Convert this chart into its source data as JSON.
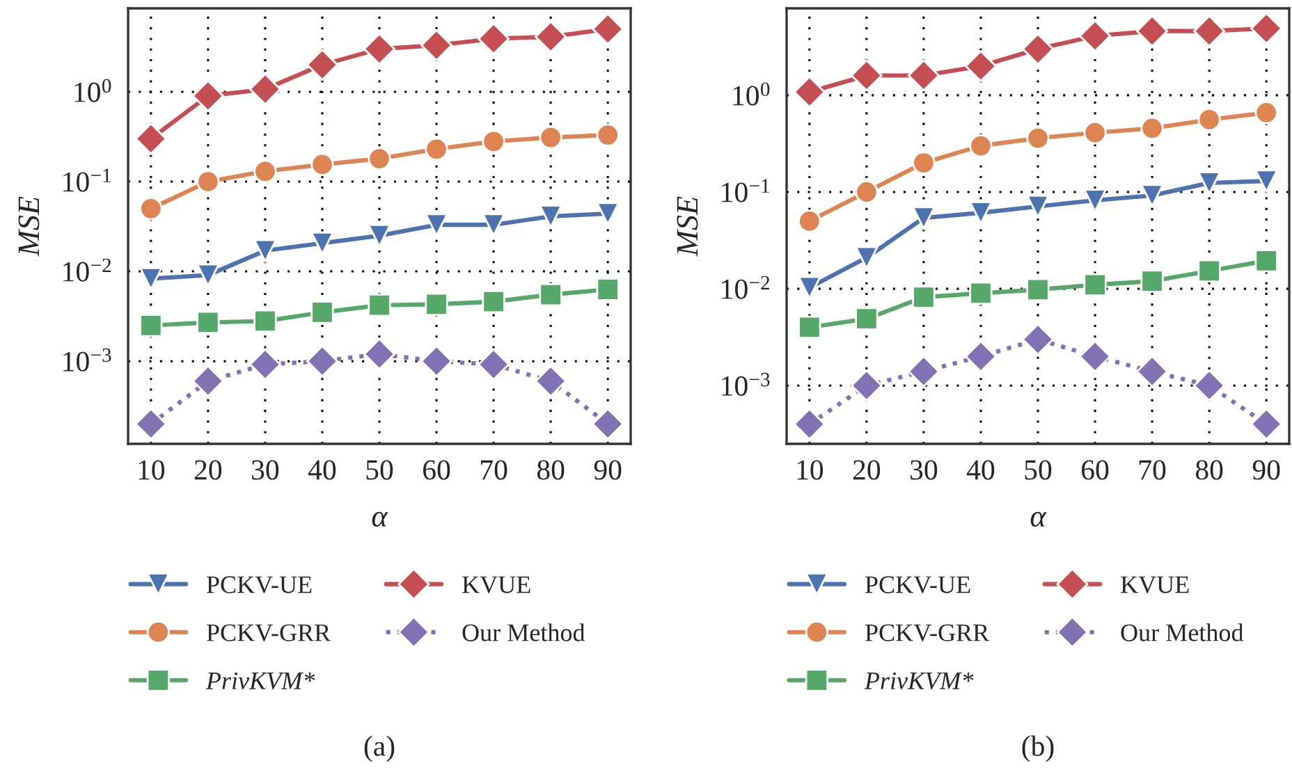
{
  "chart_data": [
    {
      "type": "line",
      "xlabel": "α",
      "ylabel": "MSE",
      "x": [
        10,
        20,
        30,
        40,
        50,
        60,
        70,
        80,
        90
      ],
      "xlim": [
        6,
        94
      ],
      "xticks": [
        10,
        20,
        30,
        40,
        50,
        60,
        70,
        80,
        90
      ],
      "log": "y",
      "ylim": [
        0.00012,
        8.5
      ],
      "yticks": [
        {
          "value": 0.001,
          "label": "10$^{−3}$"
        },
        {
          "value": 0.01,
          "label": "10$^{−2}$"
        },
        {
          "value": 0.1,
          "label": "10$^{−1}$"
        },
        {
          "value": 1,
          "label": "10$^{0}$"
        }
      ],
      "grid": true,
      "legend": "bottom",
      "annotations": [
        "(a)"
      ],
      "series": [
        {
          "name": "PCKV-UE",
          "color": "#4c72b0",
          "marker": "triangle",
          "line_style": "solid",
          "values": [
            0.0083,
            0.0091,
            0.017,
            0.0206,
            0.025,
            0.033,
            0.033,
            0.041,
            0.044
          ]
        },
        {
          "name": "PCKV-GRR",
          "color": "#dd8452",
          "marker": "circle",
          "line_style": "solid",
          "values": [
            0.05,
            0.1,
            0.13,
            0.155,
            0.18,
            0.23,
            0.28,
            0.31,
            0.33
          ]
        },
        {
          "name": "PrivKVM*",
          "color": "#55a868",
          "marker": "square",
          "line_style": "solid",
          "values": [
            0.0025,
            0.0027,
            0.0028,
            0.0035,
            0.0042,
            0.0043,
            0.0046,
            0.0055,
            0.0063
          ]
        },
        {
          "name": "KVUE",
          "color": "#c44e52",
          "marker": "diamond",
          "line_style": "solid",
          "values": [
            0.3,
            0.9,
            1.07,
            2.0,
            3.0,
            3.3,
            3.9,
            4.1,
            5.0
          ]
        },
        {
          "name": "Our Method",
          "color": "#8172b3",
          "marker": "diamond",
          "line_style": "dotted",
          "values": [
            0.0002,
            0.0006,
            0.00092,
            0.001,
            0.0012,
            0.001,
            0.00092,
            0.0006,
            0.0002
          ]
        }
      ]
    },
    {
      "type": "line",
      "xlabel": "α",
      "ylabel": "MSE",
      "x": [
        10,
        20,
        30,
        40,
        50,
        60,
        70,
        80,
        90
      ],
      "xlim": [
        6,
        94
      ],
      "xticks": [
        10,
        20,
        30,
        40,
        50,
        60,
        70,
        80,
        90
      ],
      "log": "y",
      "ylim": [
        0.00025,
        7.9
      ],
      "yticks": [
        {
          "value": 0.001,
          "label": "10$^{−3}$"
        },
        {
          "value": 0.01,
          "label": "10$^{−2}$"
        },
        {
          "value": 0.1,
          "label": "10$^{−1}$"
        },
        {
          "value": 1,
          "label": "10$^{0}$"
        }
      ],
      "grid": true,
      "legend": "bottom",
      "annotations": [
        "(b)"
      ],
      "series": [
        {
          "name": "PCKV-UE",
          "color": "#4c72b0",
          "marker": "triangle",
          "line_style": "solid",
          "values": [
            0.0103,
            0.021,
            0.054,
            0.061,
            0.071,
            0.082,
            0.092,
            0.124,
            0.13
          ]
        },
        {
          "name": "PCKV-GRR",
          "color": "#dd8452",
          "marker": "circle",
          "line_style": "solid",
          "values": [
            0.05,
            0.1,
            0.2,
            0.3,
            0.36,
            0.41,
            0.455,
            0.56,
            0.66
          ]
        },
        {
          "name": "PrivKVM*",
          "color": "#55a868",
          "marker": "square",
          "line_style": "solid",
          "values": [
            0.004,
            0.0049,
            0.0082,
            0.009,
            0.0098,
            0.011,
            0.012,
            0.0153,
            0.0195
          ]
        },
        {
          "name": "KVUE",
          "color": "#c44e52",
          "marker": "diamond",
          "line_style": "solid",
          "values": [
            1.08,
            1.6,
            1.6,
            2.0,
            3.0,
            4.1,
            4.6,
            4.6,
            4.9
          ]
        },
        {
          "name": "Our Method",
          "color": "#8172b3",
          "marker": "diamond",
          "line_style": "dotted",
          "values": [
            0.0004,
            0.001,
            0.0014,
            0.002,
            0.003,
            0.002,
            0.0014,
            0.001,
            0.0004
          ]
        }
      ]
    }
  ]
}
